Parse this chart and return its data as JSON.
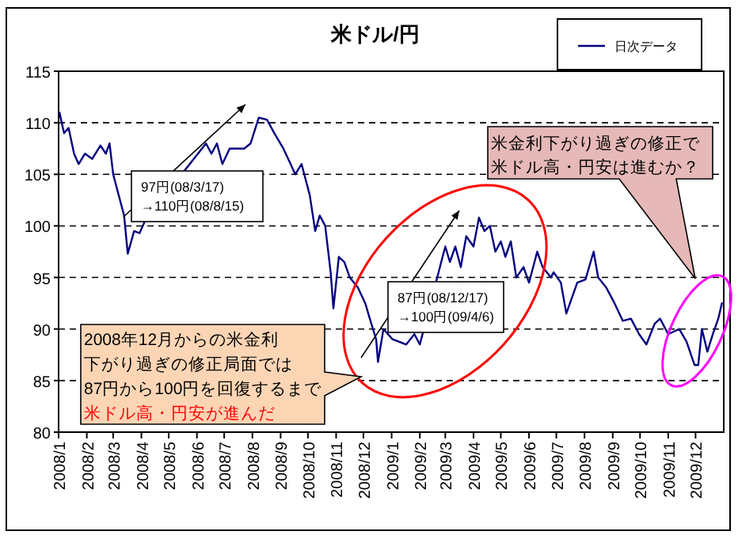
{
  "chart_data": {
    "type": "line",
    "title": "米ドル/円",
    "x": [
      "2008-01-02",
      "2008-01-07",
      "2008-01-12",
      "2008-01-18",
      "2008-01-23",
      "2008-01-30",
      "2008-02-07",
      "2008-02-16",
      "2008-02-22",
      "2008-02-26",
      "2008-03-01",
      "2008-03-07",
      "2008-03-13",
      "2008-03-17",
      "2008-03-24",
      "2008-03-30",
      "2008-04-05",
      "2008-06-11",
      "2008-06-17",
      "2008-06-23",
      "2008-06-29",
      "2008-07-07",
      "2008-07-23",
      "2008-07-30",
      "2008-08-08",
      "2008-08-17",
      "2008-08-25",
      "2008-09-04",
      "2008-09-12",
      "2008-09-17",
      "2008-09-24",
      "2008-10-03",
      "2008-10-09",
      "2008-10-14",
      "2008-10-20",
      "2008-10-26",
      "2008-10-29",
      "2008-11-04",
      "2008-11-10",
      "2008-11-16",
      "2008-11-25",
      "2008-12-03",
      "2008-12-08",
      "2008-12-15",
      "2008-12-17",
      "2008-12-23",
      "2009-01-02",
      "2009-01-17",
      "2009-01-26",
      "2009-02-01",
      "2009-02-26",
      "2009-03-01",
      "2009-03-06",
      "2009-03-12",
      "2009-03-18",
      "2009-03-24",
      "2009-04-01",
      "2009-04-07",
      "2009-04-13",
      "2009-04-19",
      "2009-04-25",
      "2009-05-01",
      "2009-05-06",
      "2009-05-12",
      "2009-05-18",
      "2009-05-26",
      "2009-06-01",
      "2009-06-10",
      "2009-06-16",
      "2009-06-25",
      "2009-06-28",
      "2009-07-06",
      "2009-07-12",
      "2009-07-18",
      "2009-07-24",
      "2009-08-02",
      "2009-08-11",
      "2009-08-16",
      "2009-08-25",
      "2009-09-03",
      "2009-09-12",
      "2009-09-21",
      "2009-09-30",
      "2009-10-08",
      "2009-10-17",
      "2009-10-23",
      "2009-11-01",
      "2009-11-13",
      "2009-11-21",
      "2009-11-30",
      "2009-12-04",
      "2009-12-08",
      "2009-12-14",
      "2009-12-20",
      "2009-12-26",
      "2009-12-30"
    ],
    "series": [
      {
        "name": "日次データ",
        "color": "#000080",
        "values": [
          111,
          109,
          109.5,
          107,
          106,
          107,
          106.5,
          107.8,
          107,
          108,
          105,
          103,
          101,
          97.3,
          99.5,
          99.3,
          100.5,
          108,
          107,
          108,
          106,
          107.5,
          107.5,
          108,
          110.5,
          110.3,
          109,
          107.5,
          106,
          105,
          106,
          103,
          99.5,
          101,
          100,
          95.5,
          92,
          97,
          96.5,
          95,
          94,
          92.5,
          91,
          89,
          86.8,
          90,
          89,
          88.5,
          89.5,
          88.5,
          97,
          98,
          96.5,
          98,
          96,
          99,
          98,
          100.8,
          99.5,
          100,
          97.5,
          98.5,
          97,
          98.5,
          95,
          96,
          94.5,
          97.5,
          96,
          95,
          95.5,
          94.5,
          91.5,
          93,
          94.5,
          94.8,
          97.5,
          95,
          94,
          92.5,
          90.8,
          91,
          89.5,
          88.5,
          90.5,
          91,
          89.5,
          90,
          88.8,
          86.5,
          86.5,
          90,
          87.8,
          89.5,
          91,
          92.5
        ]
      }
    ],
    "xlim": [
      "2008-01-01",
      "2010-01-01"
    ],
    "xticks": [
      {
        "value": "2008-01-01",
        "label": "2008/1"
      },
      {
        "value": "2008-02-01",
        "label": "2008/2"
      },
      {
        "value": "2008-03-01",
        "label": "2008/3"
      },
      {
        "value": "2008-04-01",
        "label": "2008/4"
      },
      {
        "value": "2008-05-01",
        "label": "2008/5"
      },
      {
        "value": "2008-06-01",
        "label": "2008/6"
      },
      {
        "value": "2008-07-01",
        "label": "2008/7"
      },
      {
        "value": "2008-08-01",
        "label": "2008/8"
      },
      {
        "value": "2008-09-01",
        "label": "2008/9"
      },
      {
        "value": "2008-10-01",
        "label": "2008/10"
      },
      {
        "value": "2008-11-01",
        "label": "2008/11"
      },
      {
        "value": "2008-12-01",
        "label": "2008/12"
      },
      {
        "value": "2009-01-01",
        "label": "2009/1"
      },
      {
        "value": "2009-02-01",
        "label": "2009/2"
      },
      {
        "value": "2009-03-01",
        "label": "2009/3"
      },
      {
        "value": "2009-04-01",
        "label": "2009/4"
      },
      {
        "value": "2009-05-01",
        "label": "2009/5"
      },
      {
        "value": "2009-06-01",
        "label": "2009/6"
      },
      {
        "value": "2009-07-01",
        "label": "2009/7"
      },
      {
        "value": "2009-08-01",
        "label": "2009/8"
      },
      {
        "value": "2009-09-01",
        "label": "2009/9"
      },
      {
        "value": "2009-10-01",
        "label": "2009/10"
      },
      {
        "value": "2009-11-01",
        "label": "2009/11"
      },
      {
        "value": "2009-12-01",
        "label": "2009/12"
      }
    ],
    "ylim": [
      80,
      115
    ],
    "yticks": [
      80,
      85,
      90,
      95,
      100,
      105,
      110,
      115
    ],
    "grid": "y",
    "legend": "top right",
    "marker": "none",
    "line_style": "solid",
    "annotations": [
      "97円(08/3/17)\n→110円(08/8/15)",
      "87円(08/12/17)\n→100円(09/4/6)",
      "2008年12月からの米金利",
      "下がり過ぎの修正局面では",
      "87円から100円を回復するまで",
      "米ドル高・円安が進んだ",
      "米金利下がり過ぎの修正で",
      "米ドル高・円安は進むか？"
    ]
  }
}
